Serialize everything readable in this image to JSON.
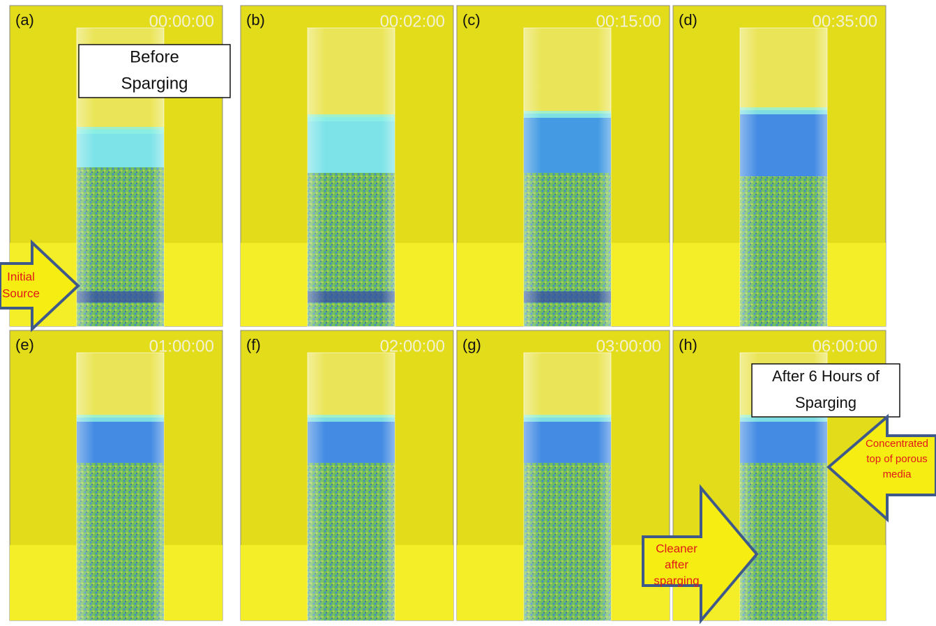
{
  "panels": [
    {
      "label": "(a)",
      "time": "00:00:00"
    },
    {
      "label": "(b)",
      "time": "00:02:00"
    },
    {
      "label": "(c)",
      "time": "00:15:00"
    },
    {
      "label": "(d)",
      "time": "00:35:00"
    },
    {
      "label": "(e)",
      "time": "01:00:00"
    },
    {
      "label": "(f)",
      "time": "02:00:00"
    },
    {
      "label": "(g)",
      "time": "03:00:00"
    },
    {
      "label": "(h)",
      "time": "06:00:00"
    }
  ],
  "annotations": {
    "before": [
      "Before",
      "Sparging"
    ],
    "after": [
      "After 6 Hours of",
      "Sparging"
    ],
    "initial_source": [
      "Initial",
      "Source"
    ],
    "cleaner": [
      "Cleaner",
      "after",
      "sparging"
    ],
    "concentrated": [
      "Concentrated",
      "top of porous",
      "media"
    ]
  }
}
